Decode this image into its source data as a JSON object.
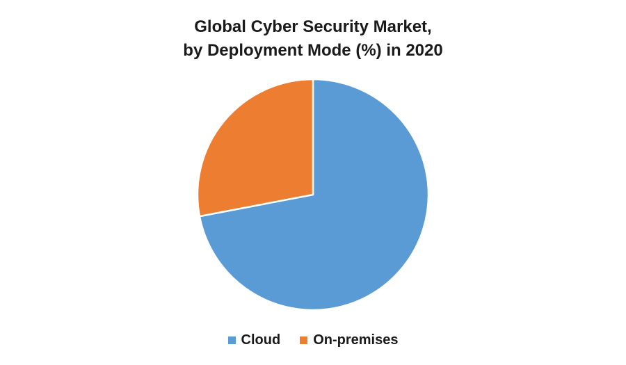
{
  "chart_data": {
    "type": "pie",
    "title": "Global Cyber Security Market,",
    "subtitle": "by Deployment Mode (%) in 2020",
    "categories": [
      "Cloud",
      "On-premises"
    ],
    "values": [
      72,
      28
    ],
    "colors": [
      "#5B9BD5",
      "#ED7D31"
    ],
    "start_angle_deg": 0,
    "direction": "clockwise",
    "legend_position": "bottom"
  }
}
